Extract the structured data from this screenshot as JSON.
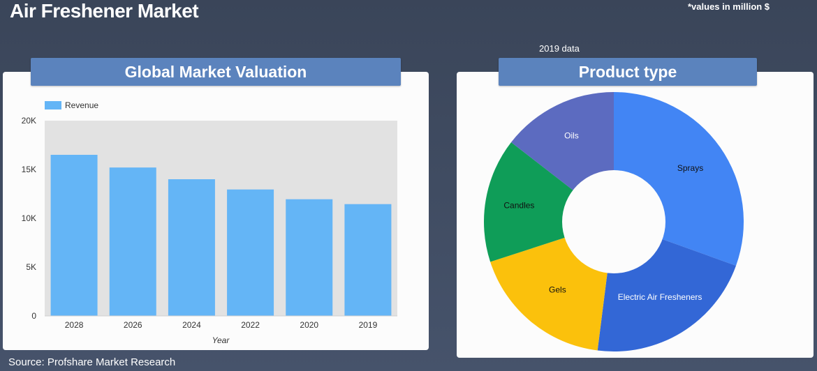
{
  "page": {
    "title": "Air Freshener Market",
    "units_note": "*values in million $",
    "data_year_label": "2019 data",
    "source": "Source: Profshare Market Research"
  },
  "left_card": {
    "header": "Global Market Valuation"
  },
  "right_card": {
    "header": "Product type"
  },
  "colors": {
    "bar": "#64b5f6",
    "plot_bg": "#e2e2e2",
    "sprays": "#4285f4",
    "electric": "#3367d6",
    "gels": "#fbc10c",
    "candles": "#0f9d58",
    "oils": "#5c6bc0"
  },
  "chart_data": [
    {
      "type": "bar",
      "title": "Global Market Valuation",
      "legend": [
        "Revenue"
      ],
      "categories": [
        "2028",
        "2026",
        "2024",
        "2022",
        "2020",
        "2019"
      ],
      "series": [
        {
          "name": "Revenue",
          "values": [
            16500,
            15200,
            14000,
            12950,
            11950,
            11450
          ]
        }
      ],
      "xlabel": "Year",
      "ylabel": "",
      "ylim": [
        0,
        20000
      ],
      "yticks": [
        0,
        5000,
        10000,
        15000,
        20000
      ],
      "ytick_labels": [
        "0",
        "5K",
        "10K",
        "15K",
        "20K"
      ]
    },
    {
      "type": "pie",
      "title": "Product type",
      "subtitle": "2019 data",
      "labels": [
        "Sprays",
        "Electric Air Fresheners",
        "Gels",
        "Candles",
        "Oils"
      ],
      "values": [
        30.5,
        21.5,
        18,
        15.5,
        14.5
      ],
      "unit": "%"
    }
  ]
}
